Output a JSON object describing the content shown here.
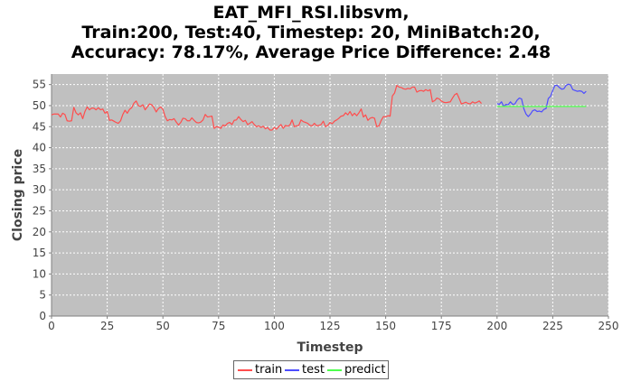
{
  "title_lines": [
    "EAT_MFI_RSI.libsvm,",
    "Train:200, Test:40, Timestep: 20, MiniBatch:20,",
    "Accuracy: 78.17%, Average Price Difference: 2.48"
  ],
  "chart_data": {
    "type": "line",
    "title": "EAT_MFI_RSI.libsvm, Train:200, Test:40, Timestep: 20, MiniBatch:20, Accuracy: 78.17%, Average Price Difference: 2.48",
    "xlabel": "Timestep",
    "ylabel": "Closing price",
    "xlim": [
      0,
      250
    ],
    "ylim": [
      0,
      57.5
    ],
    "xticks": [
      0,
      25,
      50,
      75,
      100,
      125,
      150,
      175,
      200,
      225,
      250
    ],
    "yticks": [
      0,
      5,
      10,
      15,
      20,
      25,
      30,
      35,
      40,
      45,
      50,
      55
    ],
    "grid": true,
    "legend_position": "bottom",
    "colors": {
      "train": "#ff4d4d",
      "test": "#4d4dff",
      "predict": "#4dff4d",
      "plot_bg": "#c0c0c0"
    },
    "series": [
      {
        "name": "train",
        "color": "#ff4d4d",
        "x_start": 0,
        "values": [
          47.8,
          48.0,
          48.0,
          48.0,
          47.3,
          48.2,
          47.9,
          46.4,
          46.3,
          46.4,
          49.6,
          48.3,
          47.8,
          48.3,
          46.9,
          48.6,
          49.7,
          49.0,
          49.4,
          49.4,
          49.0,
          49.5,
          49.0,
          49.2,
          48.2,
          48.6,
          46.5,
          46.6,
          46.3,
          46.0,
          45.8,
          46.4,
          47.9,
          48.9,
          48.2,
          49.1,
          49.5,
          50.6,
          51.1,
          50.0,
          49.8,
          50.2,
          49.0,
          49.7,
          50.4,
          50.2,
          49.5,
          48.5,
          49.3,
          49.7,
          49.1,
          47.4,
          46.4,
          46.7,
          46.6,
          46.9,
          46.1,
          45.4,
          46.0,
          47.0,
          46.9,
          46.4,
          46.4,
          47.1,
          46.5,
          46.0,
          45.9,
          46.1,
          46.6,
          47.9,
          47.3,
          47.4,
          47.5,
          44.6,
          45.0,
          44.9,
          44.6,
          45.4,
          45.2,
          45.8,
          46.0,
          45.5,
          46.5,
          46.6,
          47.4,
          46.7,
          46.2,
          46.5,
          45.5,
          45.8,
          46.2,
          45.5,
          45.0,
          45.2,
          44.8,
          45.1,
          44.5,
          44.8,
          44.2,
          44.2,
          44.8,
          44.4,
          45.0,
          45.5,
          44.6,
          45.3,
          45.1,
          45.4,
          46.6,
          45.0,
          45.2,
          45.3,
          46.6,
          46.2,
          46.0,
          45.8,
          45.3,
          45.2,
          45.8,
          45.2,
          45.3,
          45.5,
          46.3,
          45.0,
          45.3,
          46.0,
          45.7,
          46.3,
          46.6,
          47.0,
          47.5,
          47.6,
          48.3,
          47.8,
          48.6,
          47.6,
          48.2,
          47.6,
          48.3,
          49.2,
          47.3,
          47.8,
          46.5,
          47.0,
          47.2,
          47.0,
          45.0,
          45.2,
          46.5,
          47.4,
          47.3,
          47.6,
          47.5,
          52.3,
          53.0,
          54.8,
          54.4,
          54.3,
          54.0,
          53.9,
          54.1,
          54.0,
          54.4,
          54.4,
          53.2,
          53.5,
          53.6,
          53.4,
          53.8,
          53.5,
          53.8,
          50.9,
          51.2,
          51.8,
          51.6,
          51.1,
          50.8,
          50.7,
          50.8,
          50.9,
          51.8,
          52.6,
          52.9,
          51.7,
          50.4,
          50.6,
          50.8,
          50.5,
          50.4,
          50.9,
          50.6,
          50.8,
          51.1,
          50.5
        ]
      },
      {
        "name": "test",
        "color": "#4d4dff",
        "x_start": 200,
        "values": [
          50.5,
          50.3,
          50.9,
          49.8,
          50.3,
          50.2,
          50.9,
          50.3,
          50.4,
          51.3,
          51.8,
          51.6,
          49.3,
          48.0,
          47.4,
          48.0,
          48.8,
          49.0,
          48.6,
          48.7,
          48.5,
          49.1,
          49.3,
          51.7,
          52.2,
          53.6,
          54.8,
          54.8,
          54.3,
          53.9,
          54.0,
          54.8,
          55.1,
          54.9,
          53.8,
          53.6,
          53.4,
          53.5,
          53.4,
          52.9,
          53.4
        ]
      },
      {
        "name": "predict",
        "color": "#4dff4d",
        "x_start": 200,
        "values": [
          49.8,
          49.8,
          49.8,
          49.8,
          49.8,
          49.8,
          49.8,
          49.8,
          49.8,
          49.8,
          49.8,
          49.8,
          49.8,
          49.8,
          49.8,
          49.8,
          49.8,
          49.8,
          49.8,
          49.8,
          49.8,
          49.8,
          49.8,
          49.8,
          49.8,
          49.8,
          49.8,
          49.8,
          49.8,
          49.8,
          49.8,
          49.8,
          49.8,
          49.8,
          49.8,
          49.8,
          49.8,
          49.8,
          49.8,
          49.8,
          49.8
        ]
      }
    ]
  }
}
